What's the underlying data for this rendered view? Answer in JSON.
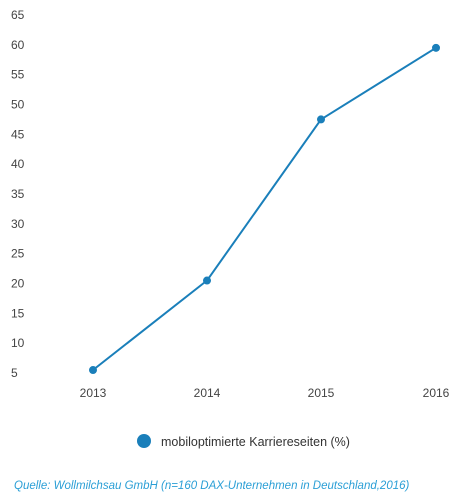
{
  "chart_data": {
    "type": "line",
    "categories": [
      "2013",
      "2014",
      "2015",
      "2016"
    ],
    "series": [
      {
        "name": "mobiloptimierte Karriereseiten (%)",
        "values": [
          5.5,
          20.5,
          47.5,
          59.5
        ]
      }
    ],
    "y_ticks": [
      5,
      10,
      15,
      20,
      25,
      30,
      35,
      40,
      45,
      50,
      55,
      60,
      65
    ],
    "ylim": [
      5,
      65
    ],
    "grid": false,
    "legend_position": "bottom-center",
    "colors": {
      "line": "#1a7fba",
      "marker": "#1a7fba",
      "legend_marker": "#1a7fba",
      "source_text": "#2b9fd6"
    }
  },
  "source_note": "Quelle: Wollmilchsau GmbH (n=160 DAX-Unternehmen in Deutschland,2016)"
}
